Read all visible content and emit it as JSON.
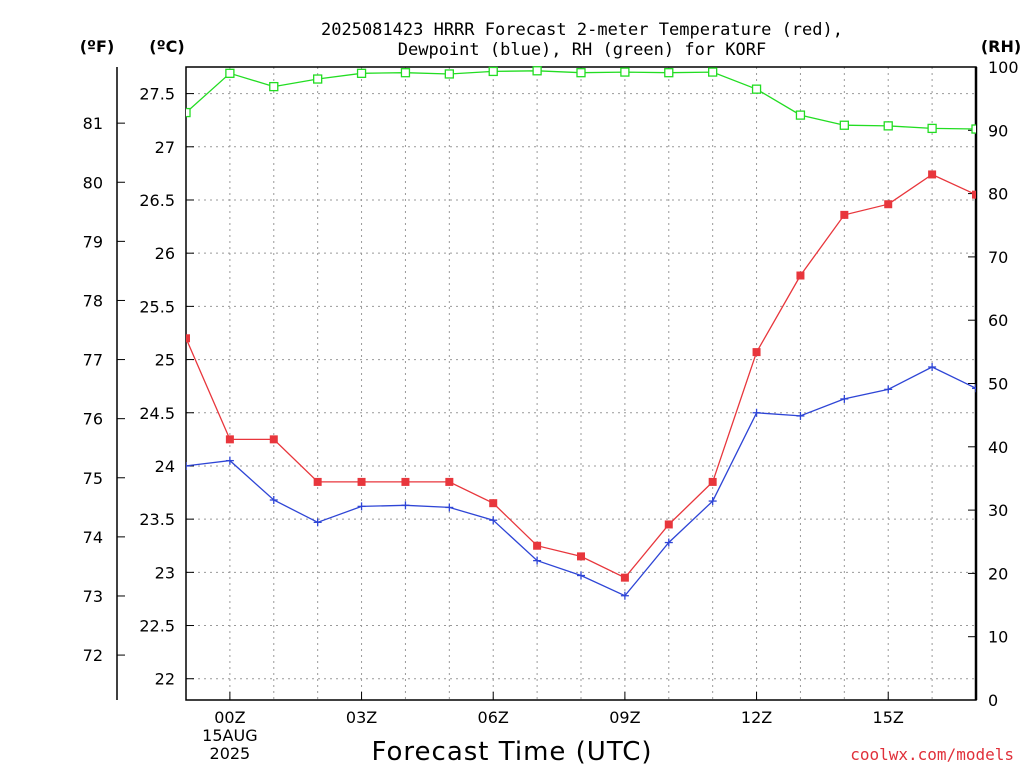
{
  "chart_data": {
    "type": "line",
    "title_line1": "2025081423 HRRR Forecast 2-meter Temperature (red),",
    "title_line2": "Dewpoint (blue), RH (green) for KORF",
    "xlabel": "Forecast Time (UTC)",
    "credit": "coolwx.com/models",
    "unit_f": "(ºF)",
    "unit_c": "(ºC)",
    "unit_rh": "(RH)",
    "x_hours": [
      -1,
      0,
      1,
      2,
      3,
      4,
      5,
      6,
      7,
      8,
      9,
      10,
      11,
      12,
      13,
      14,
      15,
      16,
      17
    ],
    "xlim": [
      -1,
      17
    ],
    "x_ticks": [
      {
        "hour": 0,
        "label": "00Z",
        "sub1": "15AUG",
        "sub2": "2025"
      },
      {
        "hour": 3,
        "label": "03Z",
        "sub1": "",
        "sub2": ""
      },
      {
        "hour": 6,
        "label": "06Z",
        "sub1": "",
        "sub2": ""
      },
      {
        "hour": 9,
        "label": "09Z",
        "sub1": "",
        "sub2": ""
      },
      {
        "hour": 12,
        "label": "12Z",
        "sub1": "",
        "sub2": ""
      },
      {
        "hour": 15,
        "label": "15Z",
        "sub1": "",
        "sub2": ""
      }
    ],
    "ylim_c": [
      21.8,
      27.75
    ],
    "ylim_rh": [
      0,
      100
    ],
    "c_ticks": [
      "22",
      "22.5",
      "23",
      "23.5",
      "24",
      "24.5",
      "25",
      "25.5",
      "26",
      "26.5",
      "27",
      "27.5"
    ],
    "f_ticks": [
      "72",
      "73",
      "74",
      "75",
      "76",
      "77",
      "78",
      "79",
      "80",
      "81"
    ],
    "rh_ticks": [
      "0",
      "10",
      "20",
      "30",
      "40",
      "50",
      "60",
      "70",
      "80",
      "90",
      "100"
    ],
    "colors": {
      "temperature": "#e8363c",
      "dewpoint": "#2e45d6",
      "rh": "#22dd22",
      "grid": "#999999"
    },
    "series": [
      {
        "key": "temperature",
        "axis": "C",
        "values": [
          25.2,
          24.25,
          24.25,
          23.85,
          23.85,
          23.85,
          23.85,
          23.65,
          23.25,
          23.15,
          22.95,
          23.45,
          23.85,
          25.07,
          25.79,
          26.36,
          26.46,
          26.74,
          26.55
        ]
      },
      {
        "key": "dewpoint",
        "axis": "C",
        "values": [
          24.0,
          24.05,
          23.68,
          23.47,
          23.62,
          23.63,
          23.61,
          23.49,
          23.11,
          22.97,
          22.78,
          23.28,
          23.67,
          24.5,
          24.47,
          24.63,
          24.72,
          24.93,
          24.73
        ]
      },
      {
        "key": "rh",
        "axis": "RH",
        "values": [
          92.8,
          99.0,
          96.9,
          98.1,
          99.0,
          99.1,
          98.9,
          99.3,
          99.4,
          99.1,
          99.2,
          99.1,
          99.2,
          96.5,
          92.4,
          90.8,
          90.7,
          90.3,
          90.2
        ]
      }
    ]
  }
}
